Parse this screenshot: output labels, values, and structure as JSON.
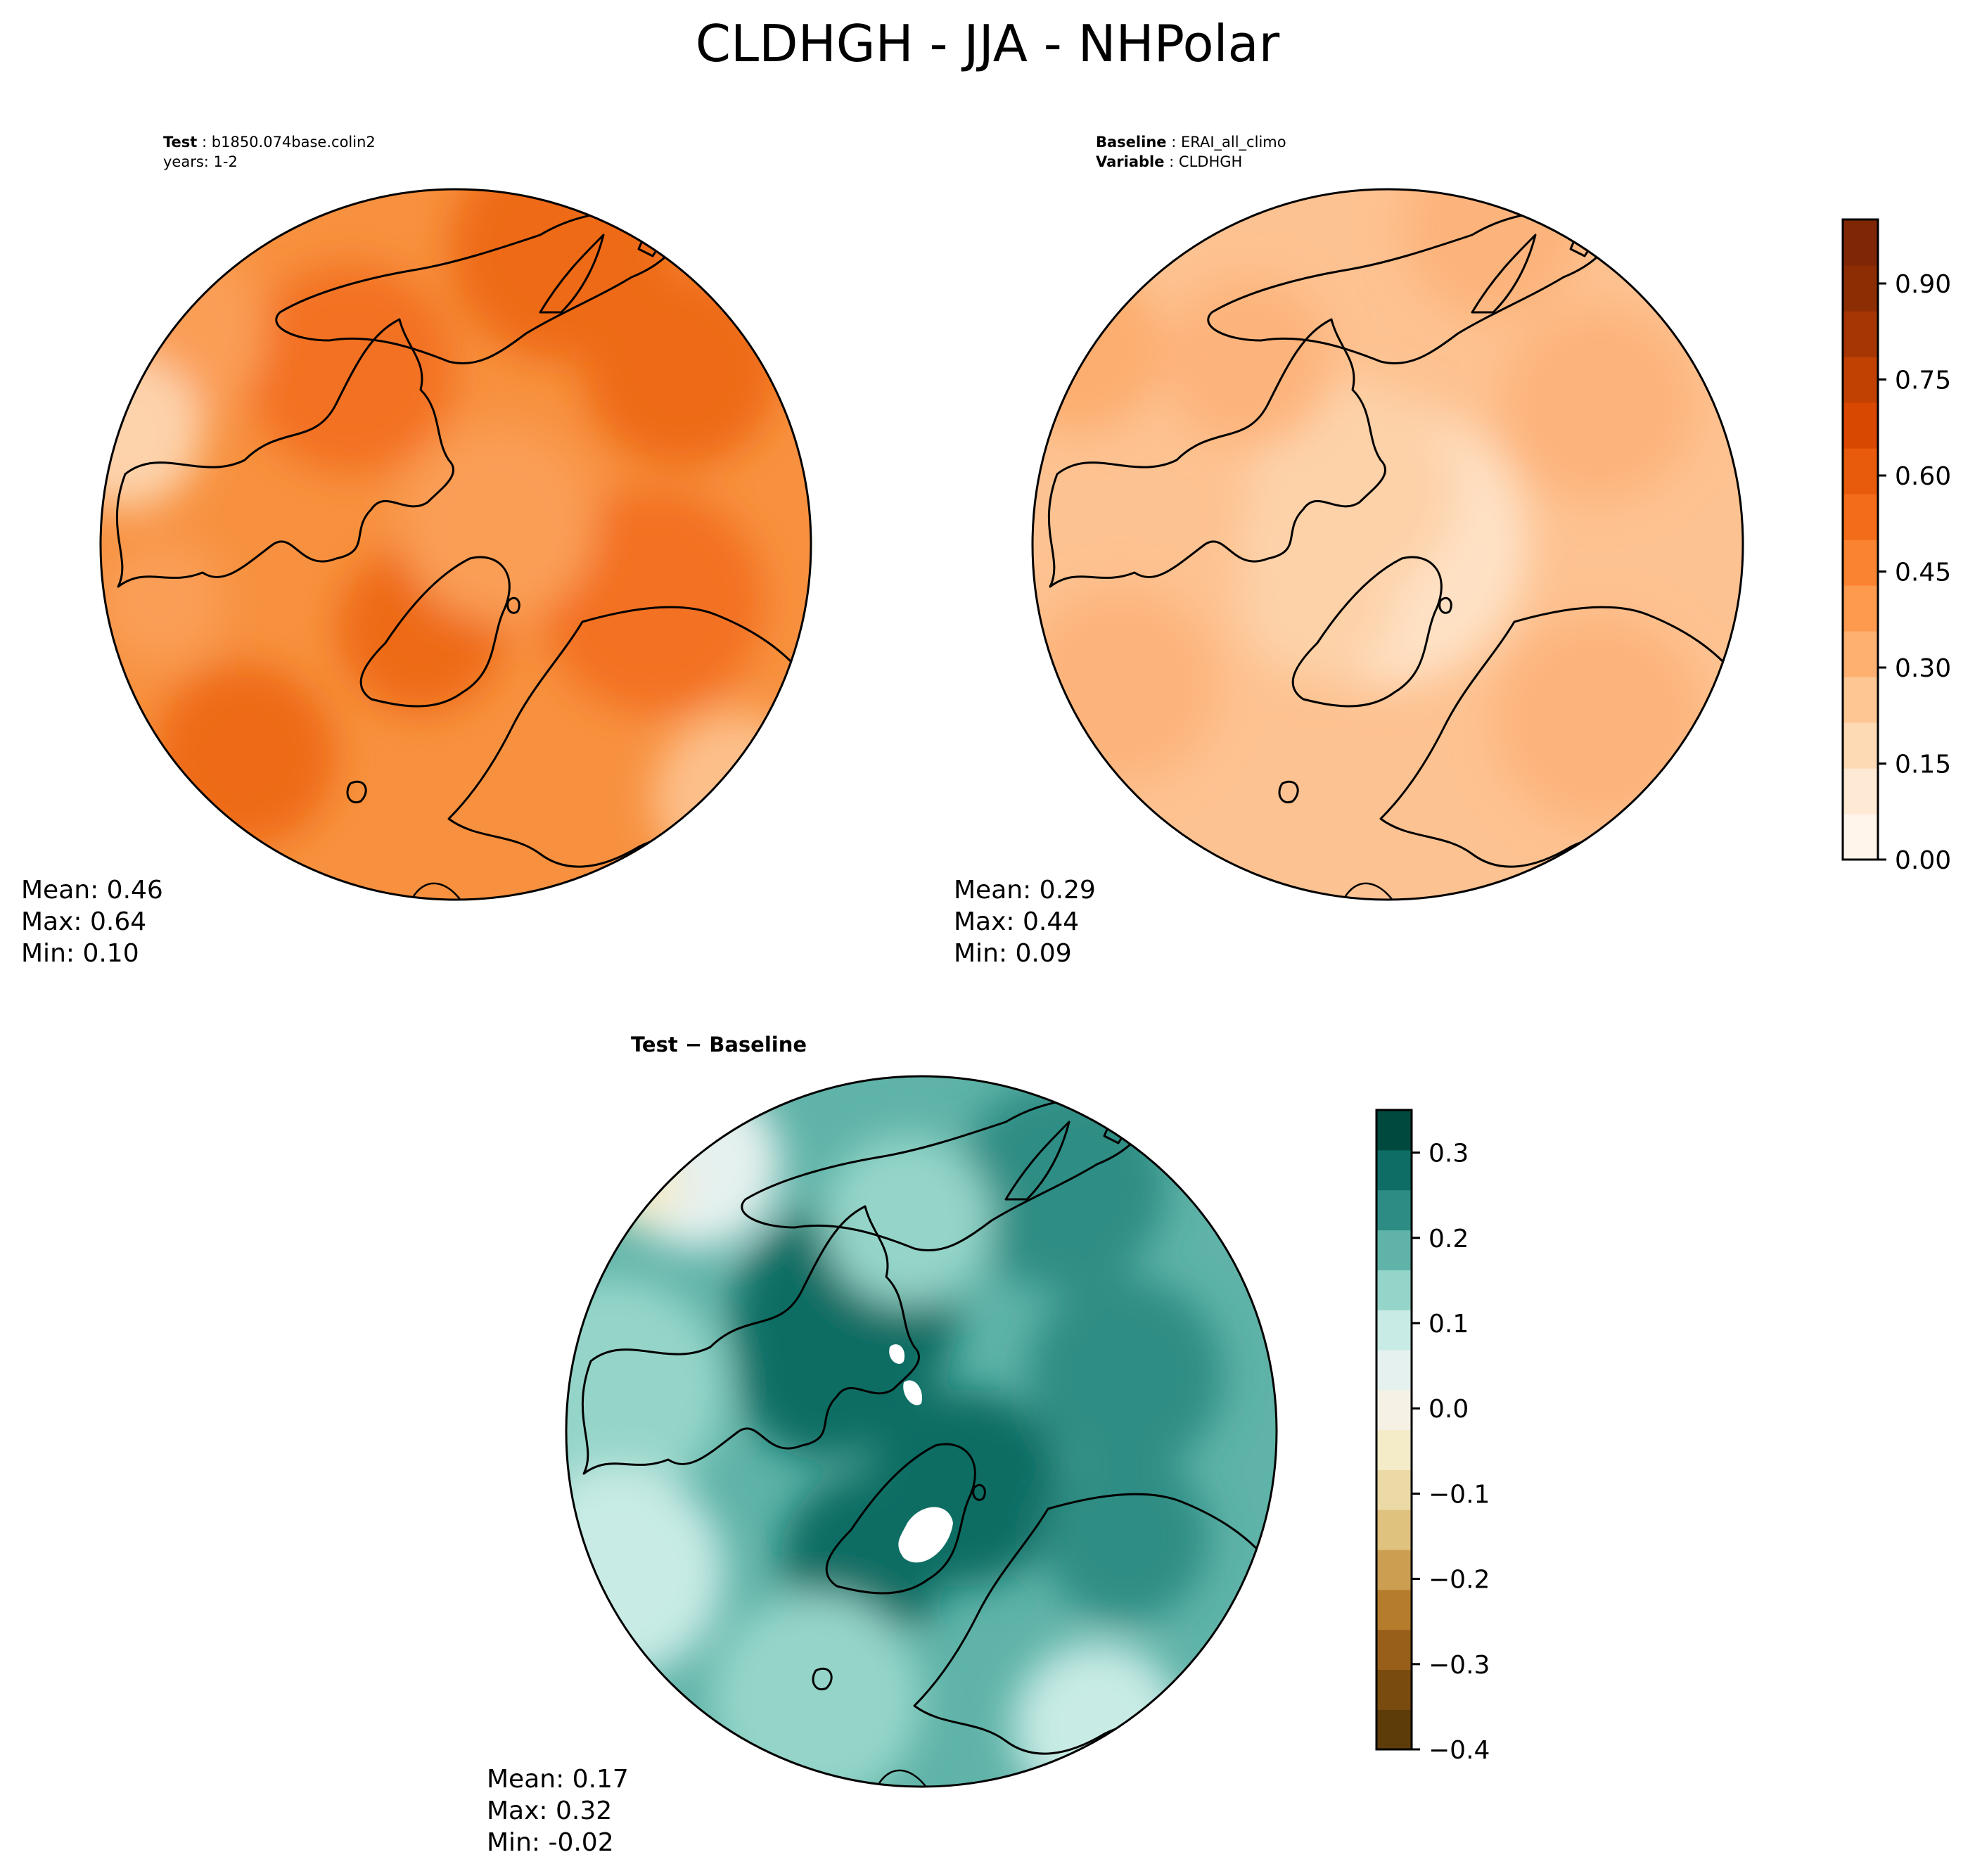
{
  "title": "CLDHGH - JJA - NHPolar",
  "panels": {
    "test": {
      "header_label": "Test",
      "header_value": "b1850.074base.colin2",
      "header_line2": "years: 1-2",
      "mean": "Mean:  0.46",
      "max": "Max:  0.64",
      "min": "Min:  0.10"
    },
    "baseline": {
      "header_label": "Baseline",
      "header_value": "ERAI_all_climo",
      "variable_label": "Variable",
      "variable_value": "CLDHGH",
      "mean": "Mean:  0.29",
      "max": "Max:  0.44",
      "min": "Min:  0.09"
    },
    "difference": {
      "title": "Test − Baseline",
      "mean": "Mean:  0.17",
      "max": "Max:  0.32",
      "min": "Min: -0.02"
    }
  },
  "colorbars": {
    "field": {
      "ticks": [
        "0.00",
        "0.15",
        "0.30",
        "0.45",
        "0.60",
        "0.75",
        "0.90"
      ],
      "range": [
        0,
        1
      ],
      "colors": [
        "#fff5eb",
        "#fee9d4",
        "#fdd9b4",
        "#fdc794",
        "#fdb070",
        "#fd9a4e",
        "#fa8331",
        "#f36c19",
        "#e85a0c",
        "#d94801",
        "#c04102",
        "#a63603",
        "#8c2d04",
        "#7f2704"
      ]
    },
    "diff": {
      "ticks": [
        "−0.4",
        "−0.3",
        "−0.2",
        "−0.1",
        "0.0",
        "0.1",
        "0.2",
        "0.3"
      ],
      "range": [
        -0.4,
        0.35
      ],
      "colors": [
        "#5e3c09",
        "#7a4b0e",
        "#985f1a",
        "#b57c2c",
        "#cc9e52",
        "#dfc27d",
        "#ebd9a6",
        "#f4ebc9",
        "#f5f1e4",
        "#e5f1ef",
        "#c8ebe5",
        "#95d5c9",
        "#5fb3a8",
        "#2d8d84",
        "#0e6d64",
        "#00493e"
      ]
    }
  },
  "maps": {
    "test": {
      "base": "#f7913f",
      "patches": [
        "#f37120",
        "#ee6a17",
        "#fa9e57",
        "#fdbf8a",
        "#fdd3ac"
      ]
    },
    "baseline": {
      "base": "#fdc291",
      "patches": [
        "#fdb47c",
        "#fdd2a9",
        "#fee1c4",
        "#fcae6f",
        "#fde6cd"
      ]
    },
    "difference": {
      "base": "#5fb3a8",
      "patches": [
        "#2d8d84",
        "#0e6d64",
        "#95d5c9",
        "#c8ebe5",
        "#e5f1ef",
        "#f4ebc9"
      ]
    }
  }
}
